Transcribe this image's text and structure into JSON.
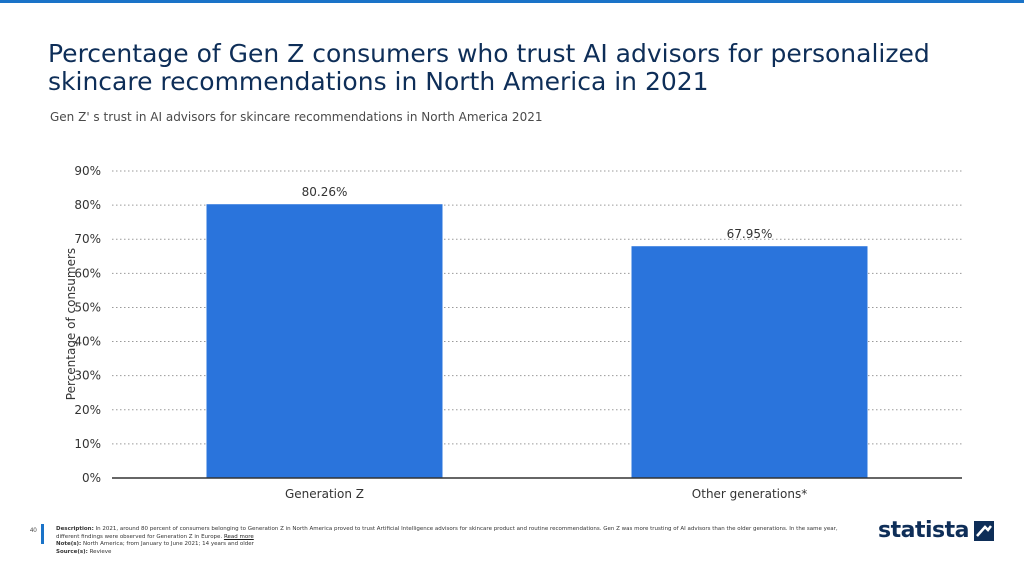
{
  "header": {
    "title": "Percentage of Gen Z consumers who trust AI advisors for personalized skincare recommendations in North America in 2021",
    "subtitle": "Gen Z' s trust in AI advisors for skincare recommendations in North America 2021"
  },
  "chart_data": {
    "type": "bar",
    "categories": [
      "Generation Z",
      "Other generations*"
    ],
    "values": [
      80.26,
      67.95
    ],
    "value_labels": [
      "80.26%",
      "67.95%"
    ],
    "ylabel": "Percentage of consumers",
    "xlabel": "",
    "ylim": [
      0,
      90
    ],
    "yticks": [
      "0%",
      "10%",
      "20%",
      "30%",
      "40%",
      "50%",
      "60%",
      "70%",
      "80%",
      "90%"
    ],
    "grid": true,
    "bar_color": "#2a74dc"
  },
  "footer": {
    "page_number": "40",
    "description_label": "Description:",
    "description": "In 2021, around 80 percent of consumers belonging to Generation Z in North America proved to trust Artificial Intelligence advisors for skincare product and routine recommendations. Gen Z was more trusting of AI advisors than the older generations. In the same year, different findings were observed for Generation Z in Europe.",
    "read_more": "Read more",
    "notes_label": "Note(s):",
    "notes": "North America; from January to June 2021; 14 years and older",
    "source_label": "Source(s):",
    "source": "Revieve"
  },
  "logo": {
    "text": "statista",
    "icon": "statista-logo-icon"
  },
  "colors": {
    "accent": "#1a73c8",
    "title": "#0e2e58",
    "bar": "#2a74dc"
  }
}
